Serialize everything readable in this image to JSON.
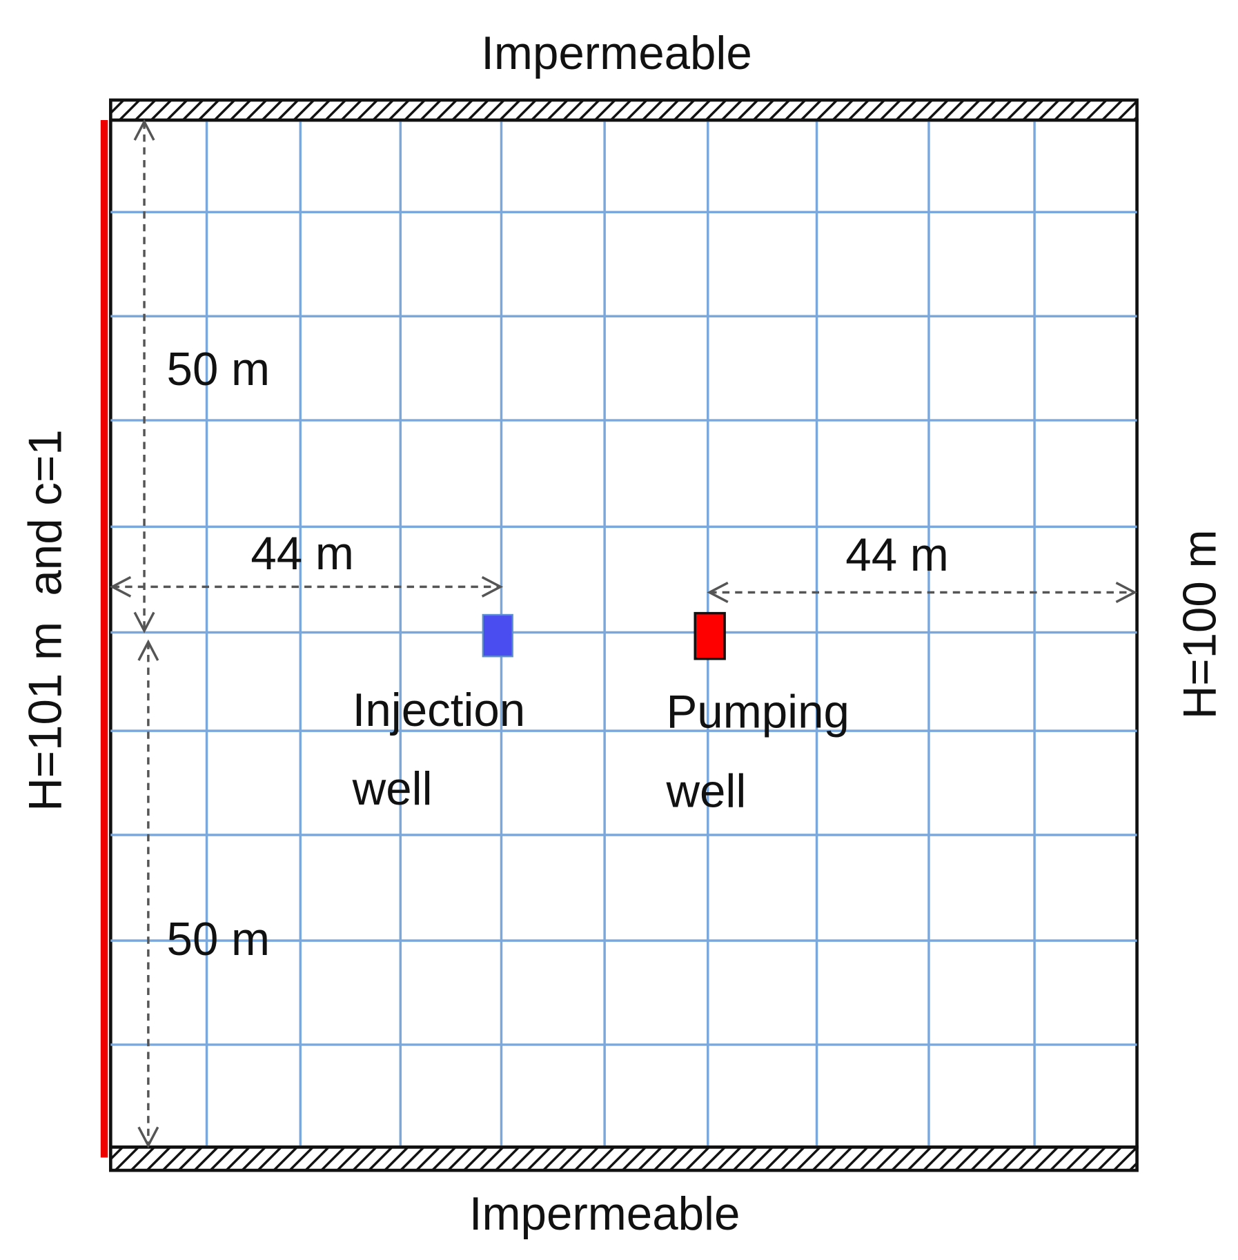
{
  "boundaries": {
    "top": "Impermeable",
    "bottom": "Impermeable",
    "left": "H=101 m  and c=1",
    "right": "H=100 m"
  },
  "dimensions": {
    "upper_vertical": "50 m",
    "lower_vertical": "50 m",
    "left_horizontal": "44 m",
    "right_horizontal": "44 m"
  },
  "wells": [
    {
      "label": [
        "Injection",
        "well"
      ]
    },
    {
      "label": [
        "Pumping",
        "well"
      ]
    }
  ]
}
